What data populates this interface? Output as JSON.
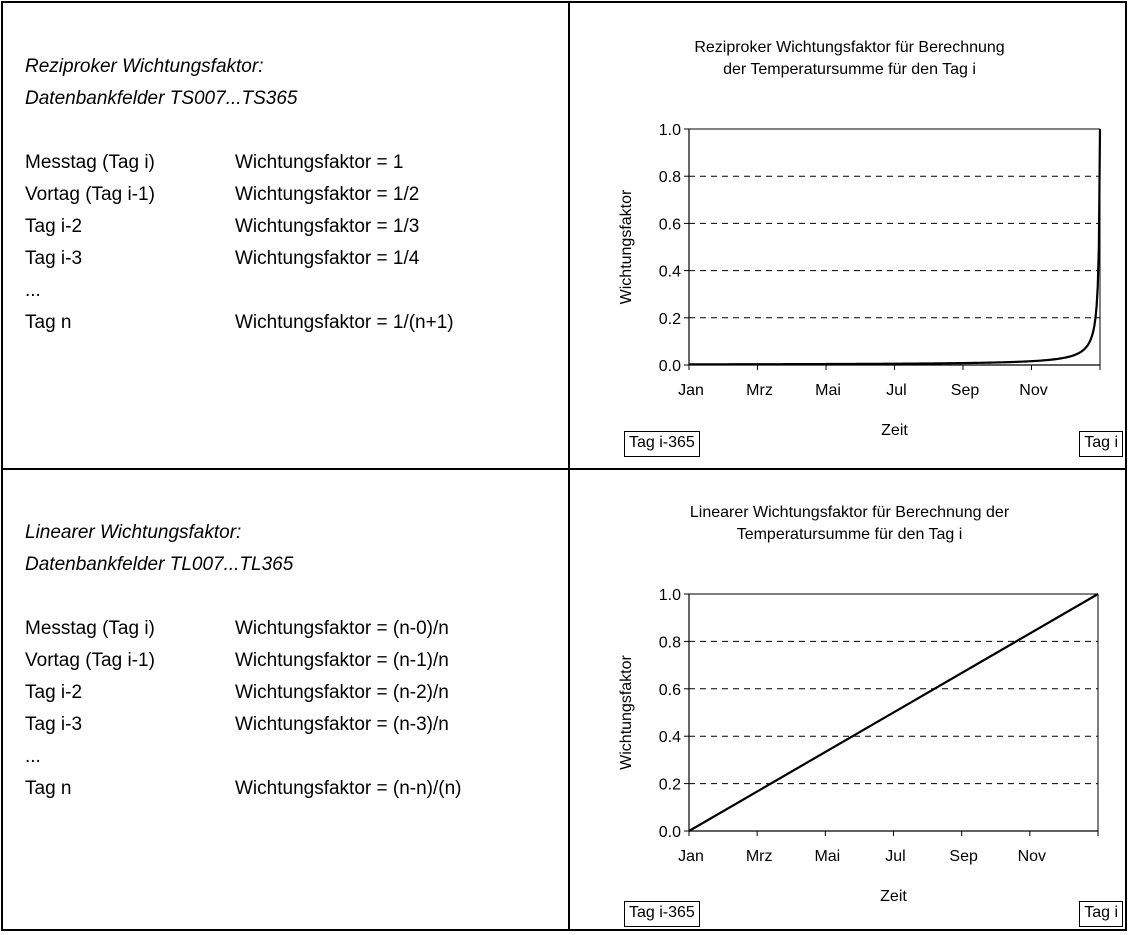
{
  "panels": [
    {
      "heading1": "Reziproker Wichtungsfaktor:",
      "heading2": "Datenbankfelder TS007...TS365",
      "rows": [
        {
          "day": "Messtag (Tag i)",
          "factor": "Wichtungsfaktor = 1"
        },
        {
          "day": "Vortag (Tag i-1)",
          "factor": "Wichtungsfaktor = 1/2"
        },
        {
          "day": "Tag i-2",
          "factor": "Wichtungsfaktor = 1/3"
        },
        {
          "day": "Tag i-3",
          "factor": "Wichtungsfaktor = 1/4"
        },
        {
          "day": "...",
          "factor": ""
        },
        {
          "day": "Tag n",
          "factor": "Wichtungsfaktor = 1/(n+1)"
        }
      ]
    },
    {
      "heading1": "Linearer Wichtungsfaktor:",
      "heading2": "Datenbankfelder TL007...TL365",
      "rows": [
        {
          "day": "Messtag (Tag i)",
          "factor": "Wichtungsfaktor = (n-0)/n"
        },
        {
          "day": "Vortag (Tag i-1)",
          "factor": "Wichtungsfaktor = (n-1)/n"
        },
        {
          "day": "Tag i-2",
          "factor": "Wichtungsfaktor = (n-2)/n"
        },
        {
          "day": "Tag i-3",
          "factor": "Wichtungsfaktor = (n-3)/n"
        },
        {
          "day": "...",
          "factor": ""
        },
        {
          "day": "Tag n",
          "factor": "Wichtungsfaktor = (n-n)/(n)"
        }
      ]
    }
  ],
  "chart_data": [
    {
      "type": "line",
      "title_line1": "Reziproker Wichtungsfaktor für Berechnung",
      "title_line2": "der Temperatursumme für den Tag i",
      "xlabel": "Zeit",
      "ylabel": "Wichtungsfaktor",
      "x_tick_labels": [
        "Jan",
        "Mrz",
        "Mai",
        "Jul",
        "Sep",
        "Nov"
      ],
      "y_tick_labels": [
        "0.0",
        "0.2",
        "0.4",
        "0.6",
        "0.8",
        "1.0"
      ],
      "ylim": [
        0,
        1
      ],
      "xlim": [
        "Tag i-365",
        "Tag i"
      ],
      "grid": "horizontal dashed",
      "start_label": "Tag i-365",
      "end_label": "Tag i",
      "series": [
        {
          "formula": "1/(n+1)",
          "days_before_i": [
            365,
            300,
            200,
            100,
            60,
            40,
            30,
            20,
            15,
            10,
            7,
            5,
            4,
            3,
            2,
            1,
            0
          ],
          "values": [
            0.003,
            0.003,
            0.005,
            0.01,
            0.016,
            0.024,
            0.032,
            0.048,
            0.063,
            0.091,
            0.125,
            0.167,
            0.2,
            0.25,
            0.333,
            0.5,
            1.0
          ]
        }
      ],
      "line_color": "#000000"
    },
    {
      "type": "line",
      "title_line1": "Linearer Wichtungsfaktor für Berechnung der",
      "title_line2": "Temperatursumme für den Tag i",
      "xlabel": "Zeit",
      "ylabel": "Wichtungsfaktor",
      "x_tick_labels": [
        "Jan",
        "Mrz",
        "Mai",
        "Jul",
        "Sep",
        "Nov"
      ],
      "y_tick_labels": [
        "0.0",
        "0.2",
        "0.4",
        "0.6",
        "0.8",
        "1.0"
      ],
      "ylim": [
        0,
        1
      ],
      "xlim": [
        "Tag i-365",
        "Tag i"
      ],
      "grid": "horizontal dashed",
      "start_label": "Tag i-365",
      "end_label": "Tag i",
      "series": [
        {
          "formula": "(n-k)/n",
          "days_before_i": [
            365,
            0
          ],
          "values": [
            0.0,
            1.0
          ]
        }
      ],
      "line_color": "#000000"
    }
  ]
}
